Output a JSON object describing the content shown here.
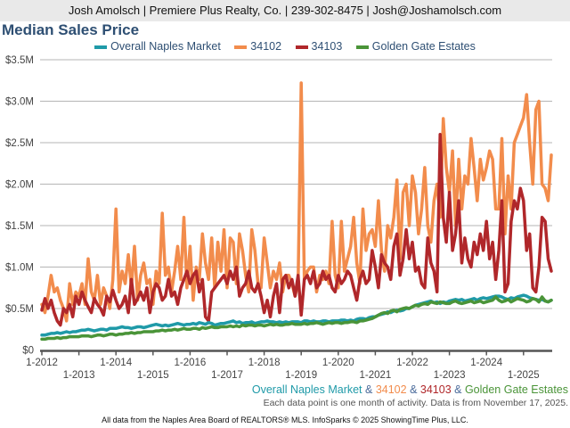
{
  "header": {
    "text": "Josh Amolsch | Premiere Plus Realty, Co. | 239-302-8475 | Josh@Joshamolsch.com"
  },
  "chart_data": {
    "type": "line",
    "title": "Median Sales Price",
    "x_start": "1-2012",
    "x_end": "10-2025",
    "x_ticks": [
      "1-2012",
      "1-2013",
      "1-2014",
      "1-2015",
      "1-2016",
      "1-2017",
      "1-2018",
      "1-2019",
      "1-2020",
      "1-2021",
      "1-2022",
      "1-2023",
      "1-2024",
      "1-2025"
    ],
    "y_ticks": [
      "$0",
      "$0.5M",
      "$1.0M",
      "$1.5M",
      "$2.0M",
      "$2.5M",
      "$3.0M",
      "$3.5M"
    ],
    "ylim": [
      0,
      3.5
    ],
    "y_unit": "millions USD",
    "grid": "horizontal",
    "legend_position": "top",
    "series": [
      {
        "name": "Overall Naples Market",
        "color": "#1f9aa8",
        "values": [
          0.18,
          0.18,
          0.19,
          0.2,
          0.2,
          0.21,
          0.2,
          0.21,
          0.22,
          0.21,
          0.22,
          0.22,
          0.23,
          0.24,
          0.24,
          0.25,
          0.24,
          0.23,
          0.24,
          0.25,
          0.25,
          0.24,
          0.26,
          0.26,
          0.26,
          0.27,
          0.28,
          0.27,
          0.27,
          0.26,
          0.27,
          0.28,
          0.28,
          0.27,
          0.28,
          0.29,
          0.3,
          0.31,
          0.3,
          0.29,
          0.3,
          0.29,
          0.3,
          0.31,
          0.32,
          0.31,
          0.3,
          0.31,
          0.31,
          0.32,
          0.31,
          0.33,
          0.32,
          0.31,
          0.33,
          0.32,
          0.3,
          0.31,
          0.32,
          0.32,
          0.33,
          0.34,
          0.35,
          0.33,
          0.34,
          0.32,
          0.33,
          0.33,
          0.34,
          0.32,
          0.33,
          0.34,
          0.34,
          0.35,
          0.34,
          0.34,
          0.33,
          0.34,
          0.33,
          0.34,
          0.33,
          0.34,
          0.34,
          0.34,
          0.33,
          0.35,
          0.35,
          0.34,
          0.35,
          0.34,
          0.34,
          0.35,
          0.35,
          0.34,
          0.35,
          0.35,
          0.35,
          0.36,
          0.36,
          0.35,
          0.36,
          0.35,
          0.37,
          0.38,
          0.38,
          0.37,
          0.39,
          0.4,
          0.4,
          0.42,
          0.43,
          0.44,
          0.46,
          0.45,
          0.47,
          0.48,
          0.47,
          0.48,
          0.5,
          0.5,
          0.52,
          0.54,
          0.55,
          0.56,
          0.57,
          0.58,
          0.59,
          0.57,
          0.58,
          0.56,
          0.58,
          0.57,
          0.59,
          0.6,
          0.61,
          0.6,
          0.61,
          0.59,
          0.6,
          0.61,
          0.62,
          0.6,
          0.62,
          0.63,
          0.62,
          0.63,
          0.64,
          0.65,
          0.65,
          0.64,
          0.62,
          0.61,
          0.63,
          0.62,
          0.64,
          0.65,
          0.66,
          0.65,
          0.63,
          0.62,
          0.61,
          0.6,
          0.61,
          0.59,
          0.58,
          0.6
        ]
      },
      {
        "name": "34102",
        "color": "#f28c4c",
        "values": [
          0.55,
          0.45,
          0.65,
          0.9,
          0.7,
          0.75,
          0.6,
          0.5,
          0.35,
          0.8,
          0.55,
          0.7,
          0.65,
          0.8,
          0.55,
          1.1,
          0.7,
          0.6,
          0.9,
          0.55,
          0.75,
          0.65,
          0.5,
          0.85,
          1.7,
          0.7,
          0.95,
          0.8,
          1.15,
          0.75,
          1.25,
          0.6,
          0.9,
          1.05,
          0.8,
          0.85,
          0.55,
          0.95,
          0.8,
          1.65,
          0.9,
          1.0,
          0.7,
          0.95,
          1.25,
          0.85,
          1.6,
          0.75,
          1.25,
          0.6,
          1.0,
          0.85,
          1.4,
          1.05,
          0.85,
          1.35,
          0.75,
          1.3,
          0.95,
          1.45,
          0.75,
          1.35,
          1.3,
          0.8,
          1.4,
          1.2,
          0.9,
          0.7,
          1.45,
          1.2,
          0.8,
          0.75,
          1.35,
          1.05,
          0.75,
          0.95,
          0.85,
          1.05,
          0.7,
          0.9,
          0.9,
          0.8,
          0.65,
          0.8,
          3.22,
          0.85,
          0.95,
          1.0,
          1.0,
          0.7,
          0.9,
          0.85,
          0.95,
          0.8,
          1.55,
          0.9,
          0.75,
          1.55,
          0.95,
          1.1,
          1.25,
          1.6,
          1.05,
          0.8,
          1.7,
          1.2,
          1.4,
          1.45,
          1.25,
          1.8,
          1.2,
          0.95,
          1.5,
          1.35,
          1.6,
          2.05,
          1.1,
          1.9,
          2.0,
          1.5,
          2.1,
          1.9,
          1.4,
          1.7,
          2.2,
          1.5,
          1.3,
          1.8,
          2.0,
          1.6,
          2.79,
          2.2,
          1.9,
          2.4,
          1.5,
          2.3,
          1.7,
          2.1,
          2.0,
          2.55,
          2.2,
          1.8,
          2.3,
          2.05,
          2.2,
          2.4,
          2.3,
          1.7,
          1.7,
          2.55,
          1.4,
          2.1,
          1.7,
          2.5,
          2.6,
          2.7,
          2.8,
          3.08,
          2.5,
          2.0,
          2.9,
          3.0,
          2.0,
          1.95,
          1.8,
          2.35
        ]
      },
      {
        "name": "34103",
        "color": "#b0272a",
        "values": [
          0.48,
          0.62,
          0.5,
          0.6,
          0.45,
          0.35,
          0.3,
          0.5,
          0.45,
          0.55,
          0.4,
          0.65,
          0.55,
          0.7,
          0.6,
          0.52,
          0.45,
          0.62,
          0.55,
          0.5,
          0.42,
          0.65,
          0.58,
          0.72,
          0.6,
          0.5,
          0.55,
          0.65,
          0.45,
          0.85,
          0.55,
          0.62,
          0.7,
          0.6,
          0.75,
          0.45,
          0.7,
          0.8,
          0.75,
          0.6,
          0.65,
          0.85,
          0.65,
          0.7,
          0.55,
          0.75,
          0.85,
          0.95,
          0.8,
          0.9,
          0.95,
          0.7,
          0.85,
          0.4,
          0.35,
          0.7,
          0.75,
          0.8,
          0.85,
          0.9,
          0.8,
          0.95,
          0.85,
          1.0,
          0.65,
          0.75,
          0.8,
          0.95,
          0.75,
          0.7,
          0.8,
          0.65,
          0.45,
          0.6,
          0.4,
          0.65,
          0.8,
          0.45,
          0.85,
          0.9,
          0.75,
          0.85,
          0.65,
          0.9,
          0.42,
          0.85,
          0.9,
          0.8,
          0.95,
          0.75,
          0.8,
          0.95,
          0.85,
          0.9,
          0.75,
          0.7,
          0.9,
          0.8,
          0.85,
          0.95,
          0.9,
          0.75,
          0.6,
          0.85,
          0.95,
          0.8,
          0.85,
          1.2,
          1.0,
          0.75,
          1.15,
          1.05,
          1.0,
          0.85,
          1.25,
          1.4,
          0.9,
          1.1,
          1.45,
          1.1,
          1.3,
          0.95,
          1.0,
          0.8,
          0.75,
          1.35,
          1.05,
          0.95,
          0.7,
          2.6,
          1.6,
          1.3,
          1.9,
          1.2,
          1.4,
          1.8,
          1.05,
          1.35,
          1.1,
          1.0,
          1.3,
          1.15,
          1.4,
          1.2,
          1.55,
          1.1,
          1.3,
          0.85,
          1.2,
          1.8,
          0.7,
          0.8,
          1.55,
          1.8,
          1.7,
          1.95,
          1.8,
          1.2,
          1.4,
          0.75,
          0.7,
          1.0,
          1.6,
          1.55,
          1.1,
          0.95
        ]
      },
      {
        "name": "Golden Gate Estates",
        "color": "#4a9438",
        "values": [
          0.13,
          0.13,
          0.14,
          0.14,
          0.14,
          0.15,
          0.14,
          0.15,
          0.15,
          0.16,
          0.16,
          0.16,
          0.16,
          0.17,
          0.17,
          0.17,
          0.16,
          0.17,
          0.18,
          0.18,
          0.17,
          0.18,
          0.19,
          0.19,
          0.18,
          0.19,
          0.19,
          0.2,
          0.2,
          0.21,
          0.2,
          0.21,
          0.21,
          0.22,
          0.22,
          0.22,
          0.22,
          0.23,
          0.23,
          0.24,
          0.23,
          0.24,
          0.24,
          0.25,
          0.24,
          0.25,
          0.26,
          0.25,
          0.25,
          0.26,
          0.26,
          0.25,
          0.27,
          0.26,
          0.27,
          0.28,
          0.27,
          0.27,
          0.28,
          0.28,
          0.28,
          0.29,
          0.28,
          0.29,
          0.28,
          0.3,
          0.29,
          0.3,
          0.3,
          0.29,
          0.3,
          0.3,
          0.29,
          0.3,
          0.31,
          0.3,
          0.31,
          0.3,
          0.3,
          0.31,
          0.31,
          0.32,
          0.31,
          0.31,
          0.31,
          0.32,
          0.31,
          0.32,
          0.32,
          0.33,
          0.32,
          0.31,
          0.32,
          0.33,
          0.32,
          0.33,
          0.33,
          0.32,
          0.33,
          0.33,
          0.34,
          0.34,
          0.33,
          0.35,
          0.35,
          0.36,
          0.37,
          0.38,
          0.4,
          0.42,
          0.44,
          0.45,
          0.44,
          0.47,
          0.48,
          0.46,
          0.49,
          0.5,
          0.51,
          0.5,
          0.52,
          0.54,
          0.53,
          0.55,
          0.56,
          0.55,
          0.58,
          0.57,
          0.56,
          0.58,
          0.57,
          0.56,
          0.56,
          0.58,
          0.59,
          0.57,
          0.56,
          0.57,
          0.58,
          0.59,
          0.57,
          0.58,
          0.59,
          0.57,
          0.58,
          0.59,
          0.6,
          0.64,
          0.6,
          0.58,
          0.59,
          0.61,
          0.58,
          0.6,
          0.62,
          0.61,
          0.6,
          0.58,
          0.59,
          0.62,
          0.61,
          0.58,
          0.64,
          0.59,
          0.58,
          0.6
        ]
      }
    ]
  },
  "source_line": {
    "parts": [
      "Overall Naples Market",
      " & ",
      "34102",
      " & ",
      "34103",
      " & ",
      "Golden Gate Estates"
    ],
    "separator_color": "#4a6a9a"
  },
  "note": "Each data point is one month of activity. Data is from November 17, 2025.",
  "footer": "All data from the Naples Area Board of REALTORS® MLS. InfoSparks © 2025 ShowingTime Plus, LLC."
}
